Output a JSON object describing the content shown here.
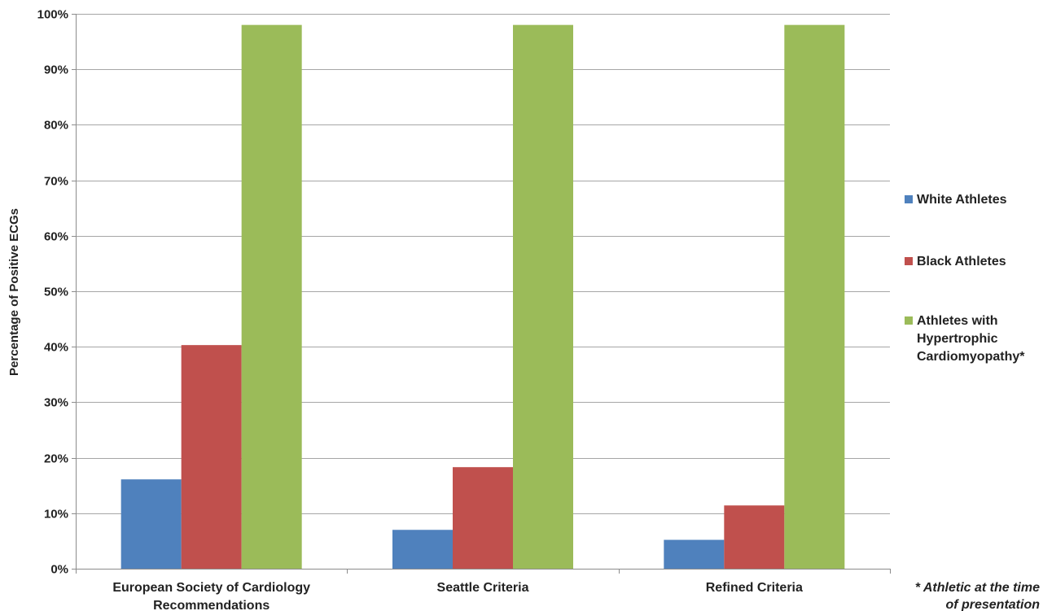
{
  "chart_data": {
    "type": "bar",
    "title": "",
    "xlabel": "",
    "ylabel": "Percentage of Positive ECGs",
    "ylim": [
      0,
      100
    ],
    "yticks": [
      "0%",
      "10%",
      "20%",
      "30%",
      "40%",
      "50%",
      "60%",
      "70%",
      "80%",
      "90%",
      "100%"
    ],
    "grid": true,
    "legend_position": "right",
    "categories": [
      [
        "European Society of Cardiology",
        "Recommendations"
      ],
      [
        "Seattle Criteria"
      ],
      [
        "Refined Criteria"
      ]
    ],
    "series": [
      {
        "name": [
          "White Athletes"
        ],
        "color": "#4F81BD",
        "values": [
          16.1,
          7.0,
          5.2
        ]
      },
      {
        "name": [
          "Black Athletes"
        ],
        "color": "#C0504D",
        "values": [
          40.3,
          18.3,
          11.4
        ]
      },
      {
        "name": [
          "Athletes with",
          "Hypertrophic",
          "Cardiomyopathy*"
        ],
        "color": "#9BBB59",
        "values": [
          98.0,
          98.0,
          98.0
        ]
      }
    ],
    "footnote": [
      "* Athletic at the time",
      "of presentation"
    ]
  }
}
